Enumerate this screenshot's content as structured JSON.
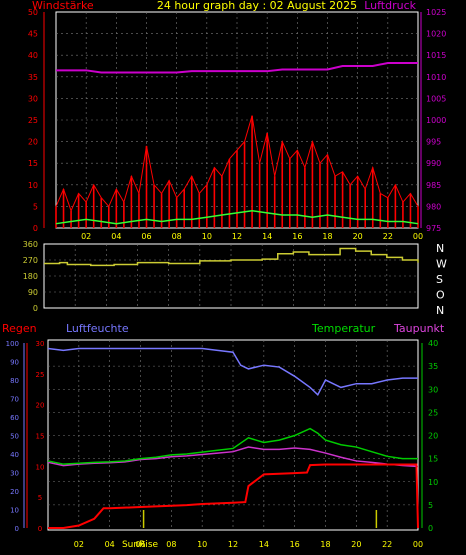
{
  "title": "24 hour graph day : 02 August 2025",
  "x_ticks": [
    "02",
    "04",
    "06",
    "08",
    "10",
    "12",
    "14",
    "16",
    "18",
    "20",
    "22",
    "00"
  ],
  "sunrise_label": "SunRise",
  "colors": {
    "wind": "#ff0000",
    "gust_avg": "#33ff33",
    "pressure": "#cc00cc",
    "direction": "#cccc33",
    "humidity": "#7777ff",
    "temperature": "#00cc00",
    "dewpoint": "#cc33cc",
    "rain": "#ff0000",
    "ticks_x": "#ffff00"
  },
  "chart_data": [
    {
      "type": "line",
      "title": "",
      "left_label": "Windstärke",
      "right_label": "Luftdruck",
      "left_ticks": [
        "0",
        "5",
        "10",
        "15",
        "20",
        "25",
        "30",
        "35",
        "40",
        "45",
        "50"
      ],
      "left_range": [
        0,
        50
      ],
      "right_ticks": [
        "975",
        "980",
        "985",
        "990",
        "995",
        "1000",
        "1005",
        "1010",
        "1015",
        "1020",
        "1025"
      ],
      "right_range": [
        975,
        1025
      ],
      "series": [
        {
          "axis": "right",
          "x": [
            0,
            2,
            3,
            8,
            9,
            14,
            15,
            18,
            19,
            21,
            22,
            24
          ],
          "values": [
            1011.5,
            1011.5,
            1011,
            1011,
            1011.3,
            1011.3,
            1011.7,
            1011.7,
            1012.5,
            1012.5,
            1013.2,
            1013.2
          ]
        },
        {
          "axis": "left",
          "x": [
            0,
            1,
            2,
            3,
            4,
            5,
            6,
            7,
            8,
            9,
            10,
            11,
            12,
            13,
            14,
            15,
            16,
            17,
            18,
            19,
            20,
            21,
            22,
            23,
            24
          ],
          "values": [
            1,
            1.5,
            2,
            1.5,
            1,
            1.5,
            2,
            1.5,
            2,
            2,
            2.5,
            3,
            3.5,
            4,
            3.5,
            3,
            3,
            2.5,
            3,
            2.5,
            2,
            2,
            1.5,
            1.5,
            1
          ]
        },
        {
          "axis": "left",
          "x": [
            0,
            0.5,
            1,
            1.5,
            2,
            2.5,
            3,
            3.5,
            4,
            4.5,
            5,
            5.5,
            6,
            6.5,
            7,
            7.5,
            8,
            8.5,
            9,
            9.5,
            10,
            10.5,
            11,
            11.5,
            12,
            12.5,
            13,
            13.5,
            14,
            14.5,
            15,
            15.5,
            16,
            16.5,
            17,
            17.5,
            18,
            18.5,
            19,
            19.5,
            20,
            20.5,
            21,
            21.5,
            22,
            22.5,
            23,
            23.5,
            24
          ],
          "values": [
            5,
            9,
            4,
            8,
            6,
            10,
            7,
            5,
            9,
            6,
            12,
            8,
            19,
            10,
            8,
            11,
            7,
            9,
            12,
            8,
            10,
            14,
            12,
            16,
            18,
            20,
            26,
            15,
            22,
            12,
            20,
            16,
            18,
            14,
            20,
            15,
            17,
            12,
            13,
            10,
            12,
            9,
            14,
            8,
            7,
            10,
            6,
            8,
            5
          ]
        }
      ]
    },
    {
      "type": "line",
      "title": "",
      "left_ticks": [
        "0",
        "90",
        "180",
        "270",
        "360"
      ],
      "left_range": [
        0,
        360
      ],
      "right_ticks": [
        "N",
        "O",
        "S",
        "W",
        "N"
      ],
      "series": [
        {
          "x": [
            0,
            1,
            1.5,
            3,
            4.5,
            6,
            8,
            10,
            12,
            14,
            15,
            16,
            17,
            18,
            19,
            20,
            21,
            22,
            23,
            24
          ],
          "values": [
            250,
            255,
            245,
            240,
            245,
            255,
            250,
            265,
            270,
            275,
            305,
            315,
            300,
            300,
            335,
            320,
            300,
            285,
            270,
            255
          ]
        }
      ]
    },
    {
      "type": "line",
      "title": "",
      "rain_label": "Regen",
      "humidity_label": "Luftfeuchte",
      "temperature_label": "Temperatur",
      "dewpoint_label": "Taupunkt",
      "rain_ticks": [
        "0",
        "5",
        "10",
        "15",
        "20",
        "25",
        "30"
      ],
      "rain_range": [
        0,
        30
      ],
      "humidity_ticks": [
        "0",
        "10",
        "20",
        "30",
        "40",
        "50",
        "60",
        "70",
        "80",
        "90",
        "100"
      ],
      "humidity_range": [
        0,
        100
      ],
      "temp_ticks": [
        "0",
        "5",
        "10",
        "15",
        "20",
        "25",
        "30",
        "35",
        "40"
      ],
      "temp_range": [
        0,
        40
      ],
      "series": [
        {
          "name": "Luftfeuchte",
          "x": [
            0,
            1,
            2,
            3,
            4,
            5,
            6,
            7,
            8,
            9,
            10,
            11,
            12,
            12.5,
            13,
            14,
            15,
            16,
            17,
            17.5,
            18,
            19,
            20,
            21,
            22,
            23,
            24
          ],
          "values": [
            97,
            96,
            97,
            97,
            97,
            97,
            97,
            97,
            97,
            97,
            97,
            96,
            95,
            88,
            86,
            88,
            87,
            82,
            76,
            72,
            80,
            76,
            78,
            78,
            80,
            81,
            81
          ]
        },
        {
          "name": "Temperatur",
          "x": [
            0,
            1,
            2,
            3,
            4,
            5,
            6,
            7,
            8,
            9,
            10,
            11,
            12,
            13,
            14,
            15,
            16,
            17,
            17.5,
            18,
            19,
            20,
            21,
            22,
            23,
            24
          ],
          "values": [
            14.5,
            13.8,
            14,
            14.2,
            14.3,
            14.5,
            15,
            15.3,
            15.8,
            16,
            16.4,
            16.8,
            17.2,
            19.5,
            18.5,
            19,
            20,
            21.5,
            20.5,
            19,
            18,
            17.5,
            16.5,
            15.5,
            15,
            15
          ]
        },
        {
          "name": "Taupunkt",
          "x": [
            0,
            1,
            2,
            3,
            4,
            5,
            6,
            7,
            8,
            9,
            10,
            11,
            12,
            13,
            14,
            15,
            16,
            17,
            18,
            19,
            20,
            21,
            22,
            23,
            24
          ],
          "values": [
            14.2,
            13.5,
            13.8,
            14,
            14.1,
            14.3,
            14.8,
            15,
            15.4,
            15.6,
            15.9,
            16.2,
            16.5,
            17.5,
            17,
            17,
            17.3,
            17,
            16.2,
            15.3,
            14.5,
            14.2,
            13.8,
            13.5,
            13.3
          ]
        },
        {
          "name": "Regen",
          "x": [
            0,
            1,
            2,
            3,
            3.6,
            4,
            6,
            8,
            9,
            10,
            11,
            12,
            12.8,
            13,
            14,
            15,
            16,
            16.8,
            17,
            18,
            20,
            22,
            23.9,
            24
          ],
          "values": [
            0,
            0,
            0.4,
            1.5,
            3.2,
            3.2,
            3.4,
            3.6,
            3.7,
            3.9,
            4.0,
            4.1,
            4.2,
            6.8,
            8.7,
            8.8,
            8.9,
            9.0,
            10.2,
            10.3,
            10.3,
            10.3,
            10.3,
            0
          ]
        }
      ],
      "rain_marks_x": [
        6.2,
        21.3
      ]
    }
  ]
}
